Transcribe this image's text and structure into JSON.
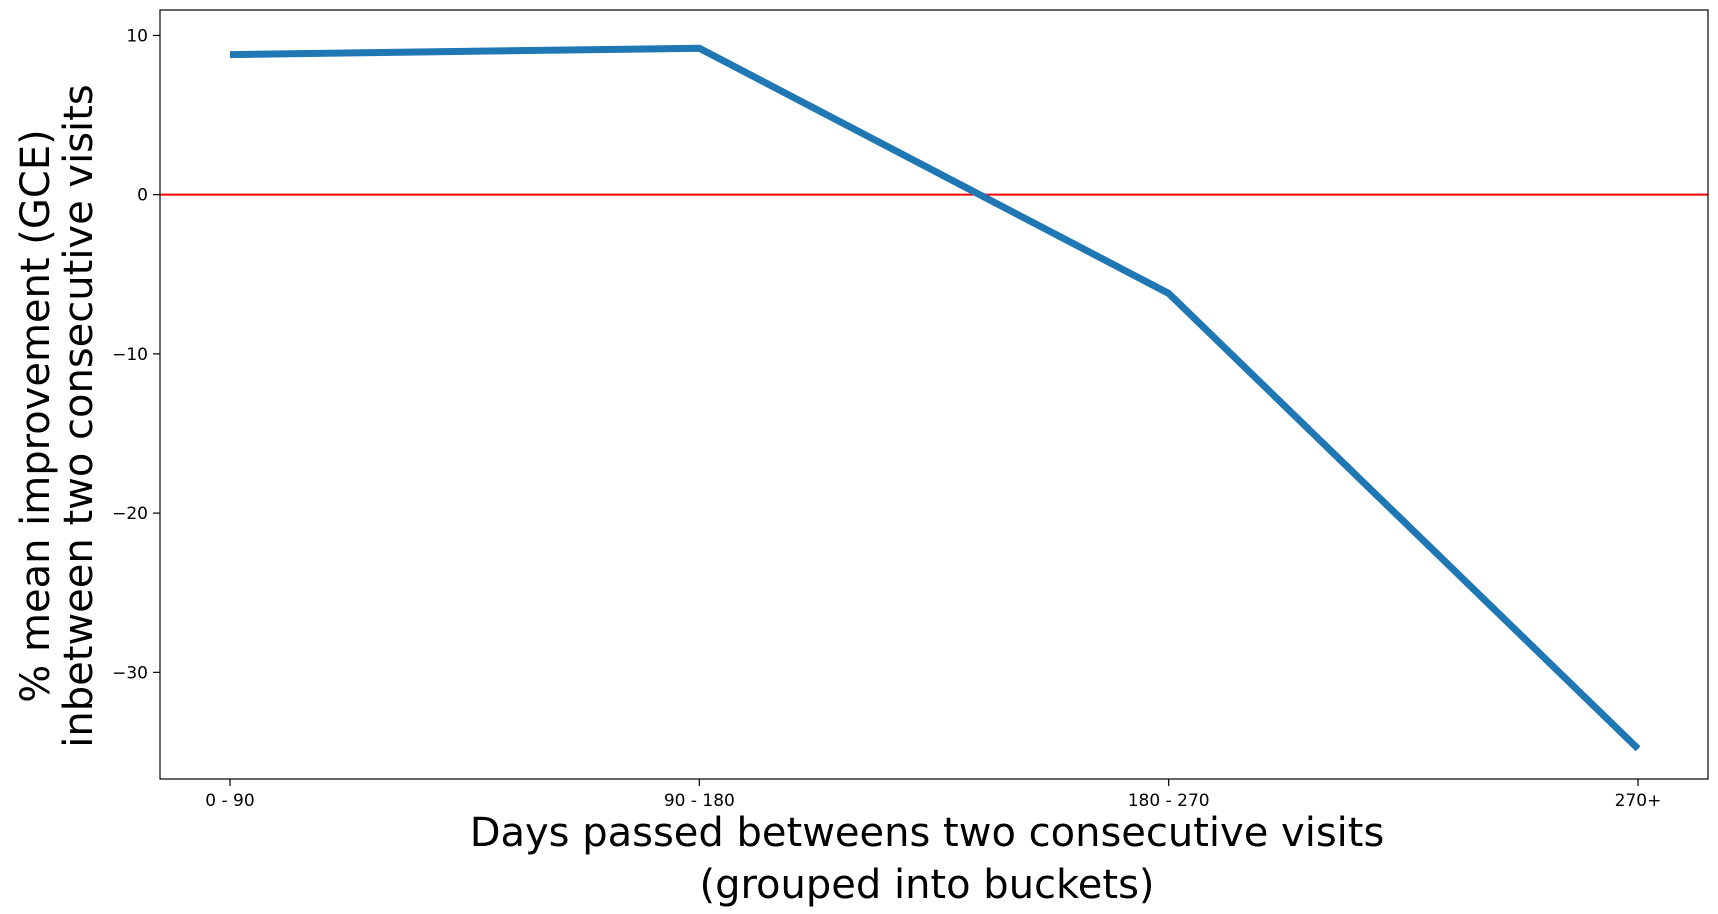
{
  "chart_data": {
    "type": "line",
    "categories": [
      "0 - 90",
      "90 - 180",
      "180 - 270",
      "270+"
    ],
    "series": [
      {
        "values": [
          8.8,
          9.2,
          -6.2,
          -34.8
        ],
        "color": "#1f77b4"
      }
    ],
    "reference_line": {
      "y": 0,
      "color": "#ff0000"
    },
    "xlabel_lines": [
      "Days passed betweens two consecutive visits",
      "(grouped into buckets)"
    ],
    "ylabel_lines": [
      "% mean improvement (GCE)",
      "inbetween two consecutive visits"
    ],
    "yticks": [
      10,
      0,
      -10,
      -20,
      -30
    ],
    "ytick_labels": [
      "10",
      "0",
      "−10",
      "−20",
      "−30"
    ],
    "ylim": [
      -36.7,
      11.6
    ],
    "grid": false,
    "legend": "none"
  }
}
